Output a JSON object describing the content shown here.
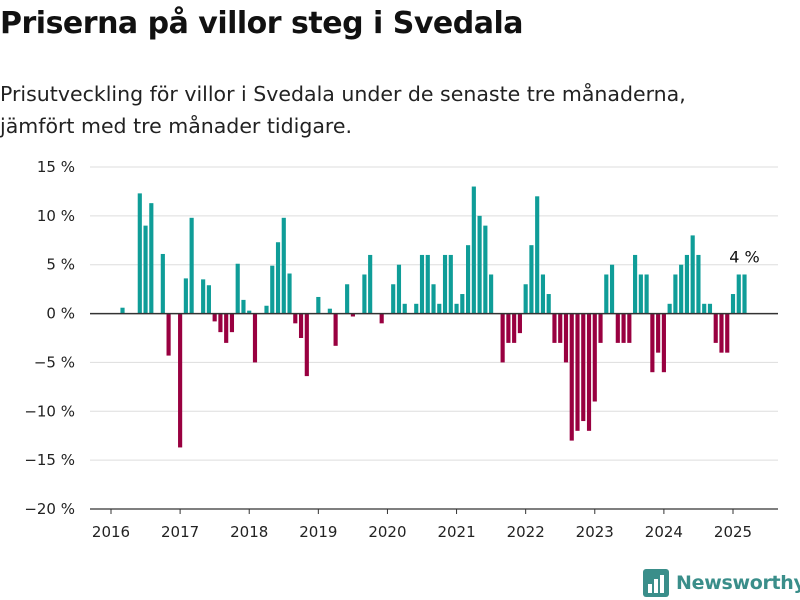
{
  "header": {
    "title": "Priserna på villor steg i Svedala",
    "subtitle": "Prisutveckling för villor i Svedala under de senaste tre månaderna, jämfört med tre månader tidigare."
  },
  "brand": {
    "name": "Newsworthy",
    "icon": "bar-chart-logo-icon"
  },
  "colors": {
    "positive": "#0f9d98",
    "negative": "#990040",
    "grid": "#dddddd",
    "zero": "#333333"
  },
  "chart_data": {
    "type": "bar",
    "title": "Priserna på villor steg i Svedala",
    "xlabel": "",
    "ylabel": "",
    "ylim": [
      -20,
      15
    ],
    "yticks": [
      15,
      10,
      5,
      0,
      -5,
      -10,
      -15,
      -20
    ],
    "ytick_labels": [
      "15 %",
      "10 %",
      "5 %",
      "0 %",
      "−5 %",
      "−10 %",
      "−15 %",
      "−20 %"
    ],
    "xticks": [
      2016,
      2017,
      2018,
      2019,
      2020,
      2021,
      2022,
      2023,
      2024,
      2025
    ],
    "xtick_labels": [
      "2016",
      "2017",
      "2018",
      "2019",
      "2020",
      "2021",
      "2022",
      "2023",
      "2024",
      "2025"
    ],
    "grid": true,
    "x_start": "2016-01",
    "x_end": "2025-03",
    "values": [
      0,
      0,
      0.6,
      0,
      0,
      12.3,
      9,
      11.3,
      0,
      6.1,
      -4.3,
      0,
      -13.7,
      3.6,
      9.8,
      0,
      3.5,
      2.9,
      -0.8,
      -1.9,
      -3,
      -1.9,
      5.1,
      1.4,
      0.3,
      -5,
      0,
      0.8,
      4.9,
      7.3,
      9.8,
      4.1,
      -1,
      -2.5,
      -6.4,
      0,
      1.7,
      0,
      0.5,
      -3.3,
      0,
      3,
      -0.3,
      0,
      4,
      6,
      0,
      -1,
      0,
      3,
      5,
      1,
      0,
      1,
      6,
      6,
      3,
      1,
      6,
      6,
      1,
      2,
      7,
      13,
      10,
      9,
      4,
      0,
      -5,
      -3,
      -3,
      -2,
      3,
      7,
      12,
      4,
      2,
      -3,
      -3,
      -5,
      -13,
      -12,
      -11,
      -12,
      -9,
      -3,
      4,
      5,
      -3,
      -3,
      -3,
      6,
      4,
      4,
      -6,
      -4,
      -6,
      1,
      4,
      5,
      6,
      8,
      6,
      1,
      1,
      -3,
      -4,
      -4,
      2,
      4,
      4
    ],
    "annotations": [
      {
        "text": "4 %",
        "x": "2025-03",
        "y": 4
      }
    ]
  }
}
